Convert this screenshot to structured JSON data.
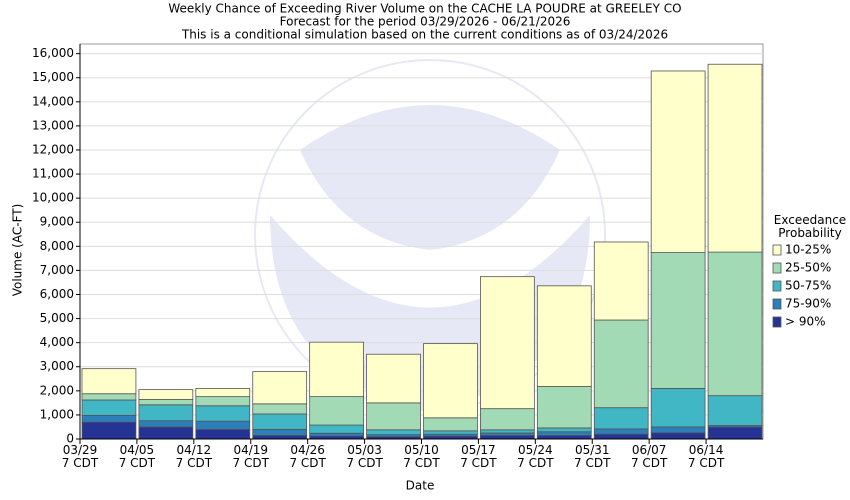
{
  "chart_data": {
    "type": "stacked_bar",
    "title": "Weekly Chance of Exceeding River Volume on the CACHE LA POUDRE at GREELEY CO",
    "subtitle": "Forecast for the period 03/29/2026 - 06/21/2026",
    "note": "This is a conditional simulation based on the current conditions as of 03/24/2026",
    "x_label": "Date",
    "y_label": "Volume (AC-FT)",
    "legend_title": "Exceedance Probability",
    "legend_position": "right",
    "grid": true,
    "categories": [
      "03/29 7 CDT",
      "04/05 7 CDT",
      "04/12 7 CDT",
      "04/19 7 CDT",
      "04/26 7 CDT",
      "05/03 7 CDT",
      "05/10 7 CDT",
      "05/17 7 CDT",
      "05/24 7 CDT",
      "05/31 7 CDT",
      "06/07 7 CDT",
      "06/14 7 CDT"
    ],
    "series": [
      {
        "name": "> 90%",
        "color": "#253494",
        "values": [
          700,
          500,
          400,
          150,
          120,
          100,
          120,
          150,
          150,
          200,
          260,
          500
        ]
      },
      {
        "name": "75-90%",
        "color": "#2c7fb8",
        "values": [
          280,
          260,
          340,
          250,
          120,
          80,
          80,
          100,
          150,
          220,
          240,
          60
        ]
      },
      {
        "name": "50-75%",
        "color": "#41b6c4",
        "values": [
          640,
          660,
          640,
          640,
          340,
          200,
          140,
          130,
          160,
          880,
          1600,
          1240
        ]
      },
      {
        "name": "25-50%",
        "color": "#a1dab4",
        "values": [
          260,
          220,
          380,
          420,
          1180,
          1120,
          540,
          880,
          1720,
          3640,
          5640,
          5960
        ]
      },
      {
        "name": "10-25%",
        "color": "#ffffcc",
        "values": [
          1040,
          410,
          340,
          1340,
          2260,
          2020,
          3080,
          5480,
          4180,
          3240,
          7540,
          7800
        ]
      }
    ],
    "ylim": [
      0,
      16400
    ],
    "yticks": [
      0,
      {
        "value": 1000,
        "label": "1,000"
      },
      {
        "value": 2000,
        "label": "2,000"
      },
      {
        "value": 3000,
        "label": "3,000"
      },
      {
        "value": 4000,
        "label": "4,000"
      },
      {
        "value": 5000,
        "label": "5,000"
      },
      {
        "value": 6000,
        "label": "6,000"
      },
      {
        "value": 7000,
        "label": "7,000"
      },
      {
        "value": 8000,
        "label": "8,000"
      },
      {
        "value": 9000,
        "label": "9,000"
      },
      {
        "value": 10000,
        "label": "10,000"
      },
      {
        "value": 11000,
        "label": "11,000"
      },
      {
        "value": 12000,
        "label": "12,000"
      },
      {
        "value": 13000,
        "label": "13,000"
      },
      {
        "value": 14000,
        "label": "14,000"
      },
      {
        "value": 15000,
        "label": "15,000"
      },
      {
        "value": 16000,
        "label": "16,000"
      }
    ]
  }
}
